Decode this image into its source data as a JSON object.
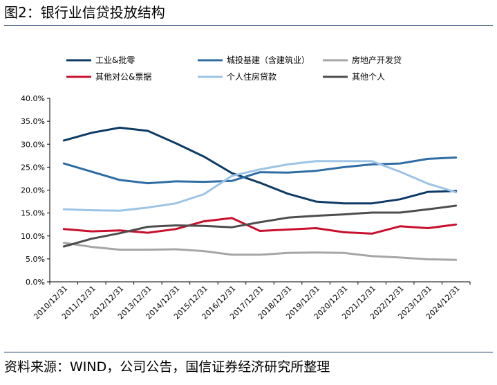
{
  "figure": {
    "title": "图2：银行业信贷投放结构",
    "source": "资料来源：WIND，公司公告，国信证券经济研究所整理"
  },
  "chart_data": {
    "type": "line",
    "categories": [
      "2010/12/31",
      "2011/12/31",
      "2012/12/31",
      "2013/12/31",
      "2014/12/31",
      "2015/12/31",
      "2016/12/31",
      "2017/12/31",
      "2018/12/31",
      "2019/12/31",
      "2020/12/31",
      "2021/12/31",
      "2022/12/31",
      "2023/12/31",
      "2024/12/31"
    ],
    "yticks": [
      "0.0%",
      "5.0%",
      "10.0%",
      "15.0%",
      "20.0%",
      "25.0%",
      "30.0%",
      "35.0%",
      "40.0%"
    ],
    "ylim": [
      0,
      40
    ],
    "grid": false,
    "legend_position": "top",
    "series": [
      {
        "name": "工业&批零",
        "color": "#0d3b66",
        "values": [
          30.8,
          32.5,
          33.6,
          32.9,
          30.2,
          27.3,
          23.7,
          21.6,
          19.2,
          17.5,
          17.1,
          17.1,
          18.0,
          19.6,
          19.8
        ]
      },
      {
        "name": "城投基建（含建筑业）",
        "color": "#2e6da4",
        "values": [
          25.8,
          24.0,
          22.2,
          21.5,
          21.9,
          21.8,
          22.0,
          23.9,
          23.8,
          24.2,
          25.0,
          25.6,
          25.8,
          26.8,
          27.1
        ]
      },
      {
        "name": "房地产开发贷",
        "color": "#a6a6a6",
        "values": [
          8.5,
          7.6,
          7.0,
          7.0,
          7.1,
          6.7,
          5.9,
          5.9,
          6.3,
          6.4,
          6.3,
          5.6,
          5.3,
          4.9,
          4.8
        ]
      },
      {
        "name": "其他对公&票据",
        "color": "#c8102e",
        "values": [
          11.5,
          11.0,
          11.2,
          10.7,
          11.5,
          13.2,
          13.9,
          11.1,
          11.4,
          11.7,
          10.8,
          10.5,
          12.1,
          11.7,
          12.5
        ]
      },
      {
        "name": "个人住房贷款",
        "color": "#9dc3e6",
        "values": [
          15.8,
          15.6,
          15.5,
          16.2,
          17.1,
          19.1,
          23.1,
          24.5,
          25.6,
          26.3,
          26.3,
          26.3,
          24.0,
          21.4,
          19.5
        ]
      },
      {
        "name": "其他个人",
        "color": "#4d4d4d",
        "values": [
          7.7,
          9.4,
          10.6,
          12.0,
          12.3,
          12.2,
          11.9,
          13.0,
          14.0,
          14.4,
          14.7,
          15.1,
          15.1,
          15.8,
          16.6
        ]
      }
    ]
  }
}
